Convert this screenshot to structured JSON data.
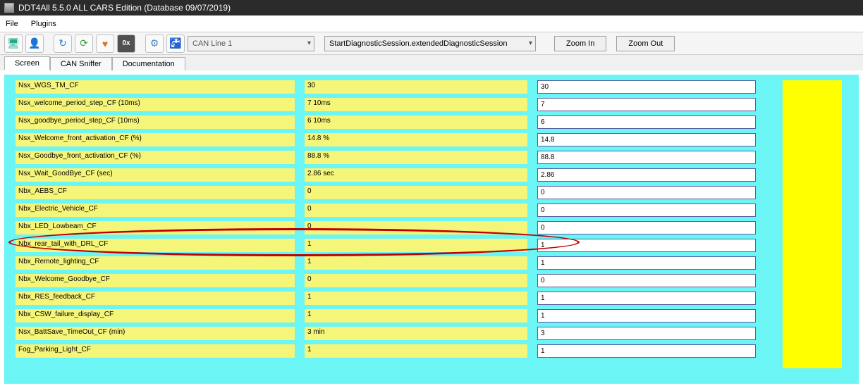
{
  "window": {
    "title": "DDT4All 5.5.0 ALL CARS Edition (Database 09/07/2019)"
  },
  "menu": {
    "file": "File",
    "plugins": "Plugins"
  },
  "toolbar": {
    "can_line": "CAN Line 1",
    "diag_session": "StartDiagnosticSession.extendedDiagnosticSession",
    "zoom_in": "Zoom In",
    "zoom_out": "Zoom Out"
  },
  "tabs": {
    "screen": "Screen",
    "sniffer": "CAN Sniffer",
    "docs": "Documentation"
  },
  "rows": [
    {
      "label": "Nsx_WGS_TM_CF",
      "val": "30",
      "input": "30"
    },
    {
      "label": "Nsx_welcome_period_step_CF (10ms)",
      "val": "7 10ms",
      "input": "7"
    },
    {
      "label": "Nsx_goodbye_period_step_CF (10ms)",
      "val": "6 10ms",
      "input": "6"
    },
    {
      "label": "Nsx_Welcome_front_activation_CF (%)",
      "val": "14.8 %",
      "input": "14.8"
    },
    {
      "label": "Nsx_Goodbye_front_activation_CF (%)",
      "val": "88.8 %",
      "input": "88.8"
    },
    {
      "label": "Nsx_Wait_GoodBye_CF (sec)",
      "val": "2.86 sec",
      "input": "2.86"
    },
    {
      "label": "Nbx_AEBS_CF",
      "val": "0",
      "input": "0"
    },
    {
      "label": "Nbx_Electric_Vehicle_CF",
      "val": "0",
      "input": "0"
    },
    {
      "label": "Nbx_LED_Lowbeam_CF",
      "val": "0",
      "input": "0"
    },
    {
      "label": "Nbx_rear_tail_with_DRL_CF",
      "val": "1",
      "input": "1"
    },
    {
      "label": "Nbx_Remote_lighting_CF",
      "val": "1",
      "input": "1"
    },
    {
      "label": "Nbx_Welcome_Goodbye_CF",
      "val": "0",
      "input": "0"
    },
    {
      "label": "Nbx_RES_feedback_CF",
      "val": "1",
      "input": "1"
    },
    {
      "label": "Nbx_CSW_failure_display_CF",
      "val": "1",
      "input": "1"
    },
    {
      "label": "Nsx_BattSave_TimeOut_CF (min)",
      "val": "3 min",
      "input": "3"
    },
    {
      "label": "Fog_Parking_Light_CF",
      "val": "1",
      "input": "1"
    }
  ],
  "colors": {
    "content_bg": "#6cf5f5",
    "cell_bg": "#f5f57a",
    "highlight_border": "#c00000",
    "sidebar_yellow": "#ffff00"
  }
}
